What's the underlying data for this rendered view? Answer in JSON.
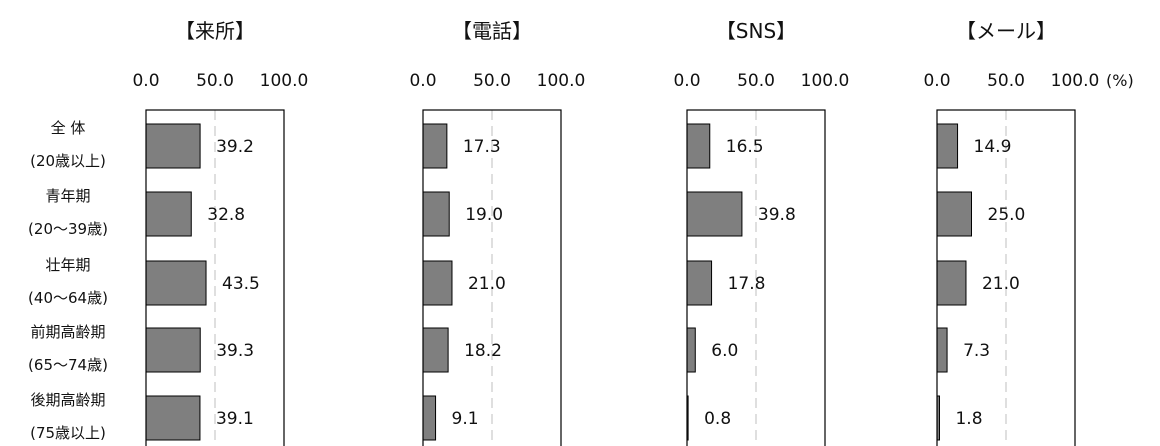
{
  "unit_label": "(%)",
  "chart_data": {
    "type": "bar",
    "orientation": "horizontal",
    "categories": [
      [
        "全 体",
        "(20歳以上)"
      ],
      [
        "青年期",
        "(20～39歳)"
      ],
      [
        "壮年期",
        "(40～64歳)"
      ],
      [
        "前期高齢期",
        "(65～74歳)"
      ],
      [
        "後期高齢期",
        "(75歳以上)"
      ]
    ],
    "xlim": [
      0,
      100
    ],
    "ticks": [
      "0.0",
      "50.0",
      "100.0"
    ],
    "grid": true,
    "bar_color": "#7f7f7f",
    "panels": [
      {
        "title": "【来所】",
        "values": [
          39.2,
          32.8,
          43.5,
          39.3,
          39.1
        ],
        "labels": [
          "39.2",
          "32.8",
          "43.5",
          "39.3",
          "39.1"
        ]
      },
      {
        "title": "【電話】",
        "values": [
          17.3,
          19.0,
          21.0,
          18.2,
          9.1
        ],
        "labels": [
          "17.3",
          "19.0",
          "21.0",
          "18.2",
          "9.1"
        ]
      },
      {
        "title": "【SNS】",
        "values": [
          16.5,
          39.8,
          17.8,
          6.0,
          0.8
        ],
        "labels": [
          "16.5",
          "39.8",
          "17.8",
          "6.0",
          "0.8"
        ]
      },
      {
        "title": "【メール】",
        "values": [
          14.9,
          25.0,
          21.0,
          7.3,
          1.8
        ],
        "labels": [
          "14.9",
          "25.0",
          "21.0",
          "7.3",
          "1.8"
        ]
      }
    ]
  }
}
